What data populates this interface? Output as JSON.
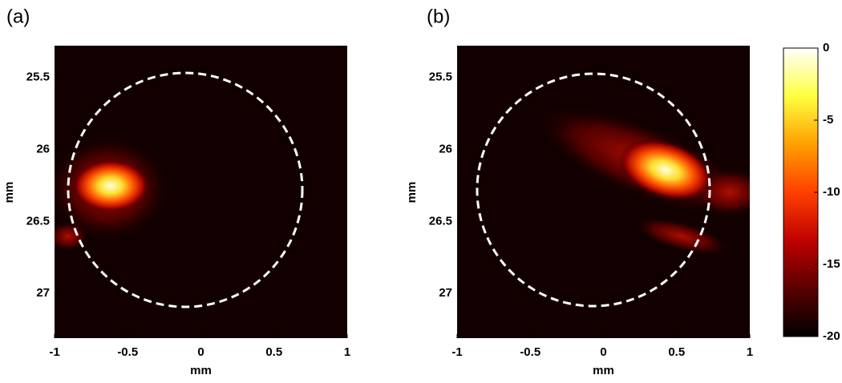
{
  "chart_data": [
    {
      "type": "heatmap",
      "panel_label": "(a)",
      "xlabel": "mm",
      "ylabel": "mm",
      "xlim": [
        -1,
        1
      ],
      "xticks": [
        -1,
        -0.5,
        0,
        0.5,
        1
      ],
      "ylim": [
        25.28,
        27.31
      ],
      "y_reversed": true,
      "yticks": [
        25.5,
        26,
        26.5,
        27
      ]
    },
    {
      "type": "heatmap",
      "panel_label": "(b)",
      "xlabel": "mm",
      "ylabel": "mm",
      "xlim": [
        -1,
        1
      ],
      "xticks": [
        -1,
        -0.5,
        0,
        0.5,
        1
      ],
      "ylim": [
        25.28,
        27.31
      ],
      "y_reversed": true,
      "yticks": [
        25.5,
        26,
        26.5,
        27
      ],
      "colorbar": {
        "lim": [
          -20,
          0
        ],
        "ticks": [
          0,
          -5,
          -10,
          -15,
          -20
        ],
        "colormap": [
          "#000000",
          "#5a0000",
          "#c00000",
          "#ff4000",
          "#ffa000",
          "#ffff40",
          "#ffffff"
        ]
      }
    }
  ]
}
